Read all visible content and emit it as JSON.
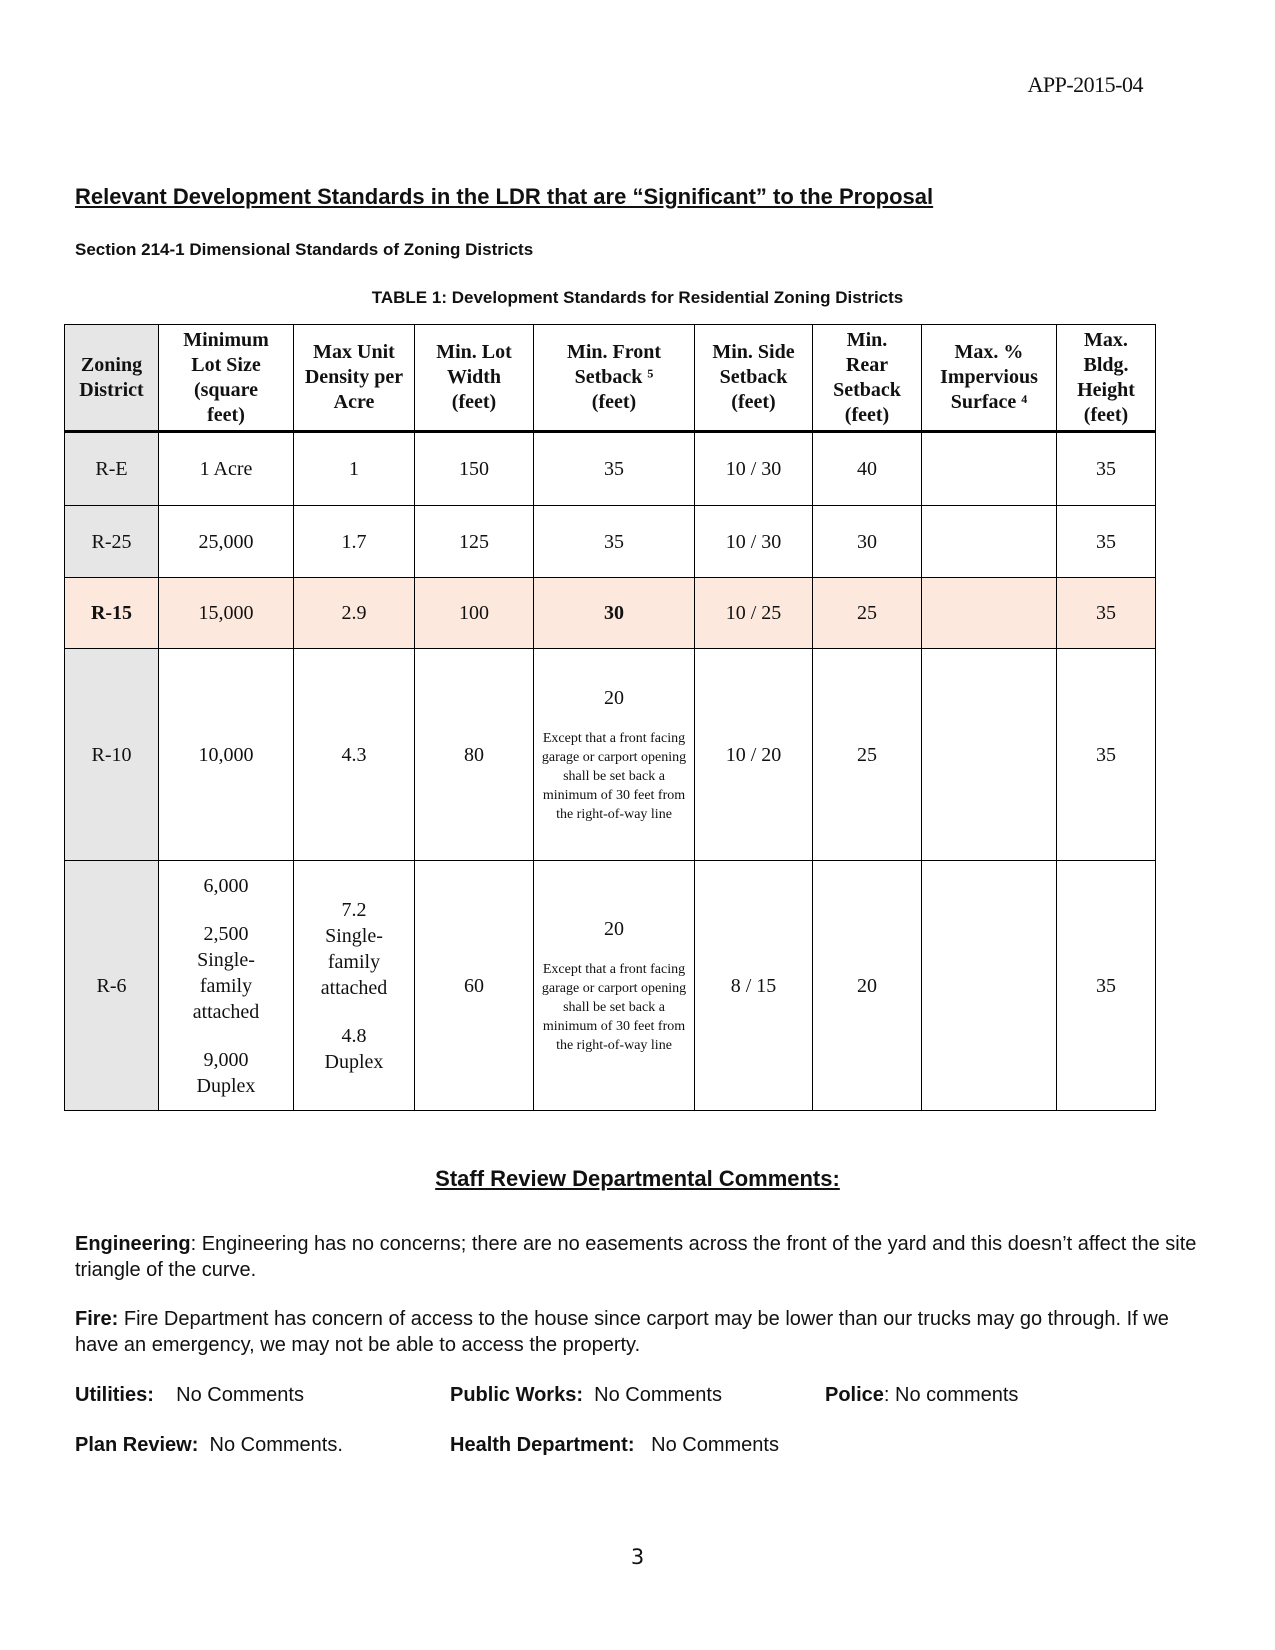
{
  "doc_id": "APP-2015-04",
  "heading": "Relevant  Development  Standards  in  the  LDR  that  are “Significant” to the Proposal",
  "section": "Section 214-1  Dimensional Standards of Zoning Districts",
  "table": {
    "caption": "TABLE  1:   Development Standards for Residential Zoning Districts",
    "headers": [
      [
        "Zoning",
        "District"
      ],
      [
        "Minimum",
        "Lot Size",
        "(square",
        "feet)"
      ],
      [
        "Max Unit",
        "Density per",
        "Acre"
      ],
      [
        "Min. Lot",
        "Width",
        "(feet)"
      ],
      [
        "Min. Front",
        "Setback ⁵",
        "(feet)"
      ],
      [
        "Min. Side",
        "Setback",
        "(feet)"
      ],
      [
        "Min.",
        "Rear",
        "Setback",
        "(feet)"
      ],
      [
        "Max. %",
        "Impervious",
        "Surface ⁴"
      ],
      [
        "Max.",
        "Bldg.",
        "Height",
        "(feet)"
      ]
    ],
    "rows": [
      {
        "district": "R-E",
        "lot_size": "1 Acre",
        "density": "1",
        "width": "150",
        "front": "35",
        "side": "10  /  30",
        "rear": "40",
        "impervious": "",
        "height": "35"
      },
      {
        "district": "R-25",
        "lot_size": "25,000",
        "density": "1.7",
        "width": "125",
        "front": "35",
        "side": "10  /  30",
        "rear": "30",
        "impervious": "",
        "height": "35"
      },
      {
        "district": "R-15",
        "lot_size": "15,000",
        "density": "2.9",
        "width": "100",
        "front": "30",
        "side": "10  /  25",
        "rear": "25",
        "impervious": "",
        "height": "35",
        "highlight_color": "#fce8dc"
      },
      {
        "district": "R-10",
        "lot_size": "10,000",
        "density": "4.3",
        "width": "80",
        "front": "20",
        "front_note": "Except that a front facing garage or carport opening shall be set back a minimum of 30 feet from the right-of-way line",
        "side": "10  /  20",
        "rear": "25",
        "impervious": "",
        "height": "35"
      },
      {
        "district": "R-6",
        "lot_size_lines": [
          "6,000",
          "2,500",
          "Single-",
          "family",
          "attached",
          "9,000",
          "Duplex"
        ],
        "density_lines": [
          "7.2",
          "Single-",
          "family",
          "attached",
          "4.8",
          "Duplex"
        ],
        "width": "60",
        "front": "20",
        "front_note": "Except that a front facing garage or carport opening shall be set back a minimum of 30 feet from the right-of-way line",
        "side": "8  /  15",
        "rear": "20",
        "impervious": "",
        "height": "35"
      }
    ]
  },
  "staff_heading": "Staff  Review  Departmental Comments:",
  "comments": {
    "engineering_label": "Engineering",
    "engineering_text": ":   Engineering has no concerns; there are no easements across the front of the yard and this doesn’t affect the site triangle of the curve.",
    "fire_label": "Fire:",
    "fire_text": "   Fire Department has concern of access to the house since carport may be lower than our trucks may go through.  If we have an emergency, we may not be able to access the property.",
    "utilities_label": "Utilities:",
    "utilities_text": "No Comments",
    "public_works_label": "Public Works:",
    "public_works_text": "No Comments",
    "police_label": "Police",
    "police_text": ":   No comments",
    "plan_review_label": "Plan Review:",
    "plan_review_text": "No Comments.",
    "health_label": "Health Department:",
    "health_text": "No Comments"
  },
  "page_number": "3"
}
